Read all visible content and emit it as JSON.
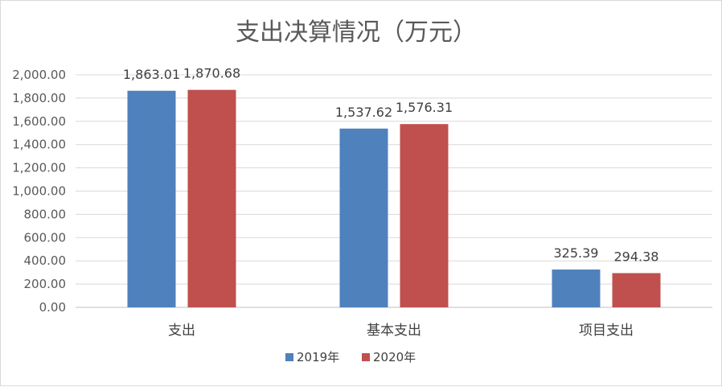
{
  "chart_data": {
    "type": "bar",
    "title": "支出决算情况（万元）",
    "categories": [
      "支出",
      "基本支出",
      "项目支出"
    ],
    "series": [
      {
        "name": "2019年",
        "values": [
          1863.01,
          1537.62,
          325.39
        ],
        "labels": [
          "1,863.01",
          "1,537.62",
          "325.39"
        ],
        "color": "#4f81bd"
      },
      {
        "name": "2020年",
        "values": [
          1870.68,
          1576.31,
          294.38
        ],
        "labels": [
          "1,870.68",
          "1,576.31",
          "294.38"
        ],
        "color": "#c0504d"
      }
    ],
    "ylim": [
      0,
      2000
    ],
    "yticks": [
      0,
      200,
      400,
      600,
      800,
      1000,
      1200,
      1400,
      1600,
      1800,
      2000
    ],
    "ytick_labels": [
      "0.00",
      "200.00",
      "400.00",
      "600.00",
      "800.00",
      "1,000.00",
      "1,200.00",
      "1,400.00",
      "1,600.00",
      "1,800.00",
      "2,000.00"
    ],
    "grid": true,
    "legend": "bottom",
    "xlabel": "",
    "ylabel": ""
  }
}
